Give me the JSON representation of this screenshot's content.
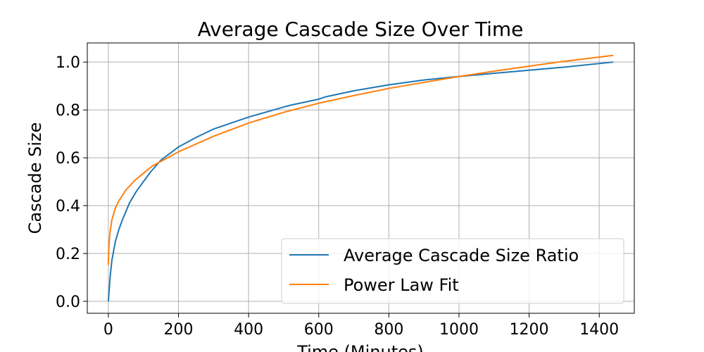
{
  "chart_data": {
    "type": "line",
    "title": "Average Cascade Size Over Time",
    "xlabel": "Time (Minutes)",
    "ylabel": "Cascade Size",
    "xlim": [
      -60,
      1500
    ],
    "ylim": [
      -0.05,
      1.08
    ],
    "xticks": [
      0,
      200,
      400,
      600,
      800,
      1000,
      1200,
      1400
    ],
    "yticks": [
      0.0,
      0.2,
      0.4,
      0.6,
      0.8,
      1.0
    ],
    "xtick_labels": [
      "0",
      "200",
      "400",
      "600",
      "800",
      "1000",
      "1200",
      "1400"
    ],
    "ytick_labels": [
      "0.0",
      "0.2",
      "0.4",
      "0.6",
      "0.8",
      "1.0"
    ],
    "grid": true,
    "legend_position": "lower-right",
    "series": [
      {
        "name": "Average Cascade Size Ratio",
        "color": "#1f77b4",
        "x": [
          0,
          5,
          10,
          20,
          30,
          40,
          60,
          80,
          100,
          120,
          150,
          200,
          250,
          300,
          400,
          500,
          520,
          600,
          620,
          700,
          800,
          900,
          1000,
          1100,
          1200,
          1300,
          1440
        ],
        "y": [
          0.0,
          0.1,
          0.17,
          0.25,
          0.3,
          0.34,
          0.41,
          0.46,
          0.5,
          0.54,
          0.59,
          0.645,
          0.685,
          0.72,
          0.77,
          0.812,
          0.82,
          0.845,
          0.855,
          0.88,
          0.905,
          0.925,
          0.94,
          0.953,
          0.966,
          0.979,
          1.0
        ]
      },
      {
        "name": "Power Law Fit",
        "color": "#ff7f0e",
        "x": [
          0,
          1,
          3,
          5,
          10,
          20,
          30,
          50,
          75,
          100,
          125,
          150,
          200,
          300,
          400,
          500,
          600,
          700,
          800,
          900,
          1000,
          1100,
          1200,
          1300,
          1440
        ],
        "y": [
          0.152,
          0.21,
          0.26,
          0.29,
          0.34,
          0.39,
          0.42,
          0.465,
          0.505,
          0.535,
          0.565,
          0.585,
          0.625,
          0.69,
          0.745,
          0.79,
          0.828,
          0.86,
          0.89,
          0.915,
          0.94,
          0.962,
          0.983,
          1.003,
          1.028
        ]
      }
    ]
  }
}
